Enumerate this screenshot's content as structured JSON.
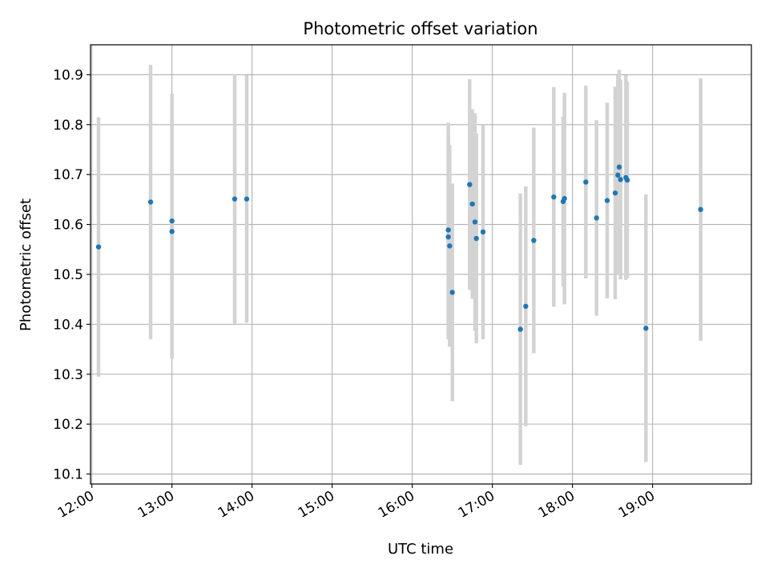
{
  "chart_data": {
    "type": "scatter",
    "title": "Photometric offset variation",
    "xlabel": "UTC time",
    "ylabel": "Photometric offset",
    "x_ticks": [
      "12:00",
      "13:00",
      "14:00",
      "15:00",
      "16:00",
      "17:00",
      "18:00",
      "19:00"
    ],
    "y_ticks": [
      "10.1",
      "10.2",
      "10.3",
      "10.4",
      "10.5",
      "10.6",
      "10.7",
      "10.8",
      "10.9"
    ],
    "xlim": [
      "11:59",
      "20:14"
    ],
    "ylim": [
      10.08,
      10.96
    ],
    "grid": true,
    "point_color": "#1f77b4",
    "errorbar_color": "#d3d3d3",
    "series": [
      {
        "points": [
          {
            "x": "12:05",
            "y": 10.555,
            "err": 0.26
          },
          {
            "x": "12:44",
            "y": 10.645,
            "err": 0.275
          },
          {
            "x": "13:00",
            "y": 10.607,
            "err": 0.255
          },
          {
            "x": "13:00",
            "y": 10.586,
            "err": 0.255
          },
          {
            "x": "13:47",
            "y": 10.651,
            "err": 0.25
          },
          {
            "x": "13:56",
            "y": 10.651,
            "err": 0.248
          },
          {
            "x": "16:27",
            "y": 10.575,
            "err": 0.205
          },
          {
            "x": "16:27",
            "y": 10.589,
            "err": 0.215
          },
          {
            "x": "16:28",
            "y": 10.557,
            "err": 0.202
          },
          {
            "x": "16:30",
            "y": 10.464,
            "err": 0.218
          },
          {
            "x": "16:43",
            "y": 10.68,
            "err": 0.211
          },
          {
            "x": "16:45",
            "y": 10.641,
            "err": 0.19
          },
          {
            "x": "16:47",
            "y": 10.605,
            "err": 0.218
          },
          {
            "x": "16:48",
            "y": 10.572,
            "err": 0.21
          },
          {
            "x": "16:53",
            "y": 10.585,
            "err": 0.215
          },
          {
            "x": "17:21",
            "y": 10.39,
            "err": 0.272
          },
          {
            "x": "17:25",
            "y": 10.436,
            "err": 0.24
          },
          {
            "x": "17:31",
            "y": 10.568,
            "err": 0.226
          },
          {
            "x": "17:46",
            "y": 10.655,
            "err": 0.22
          },
          {
            "x": "17:53",
            "y": 10.646,
            "err": 0.17
          },
          {
            "x": "17:54",
            "y": 10.652,
            "err": 0.212
          },
          {
            "x": "18:10",
            "y": 10.685,
            "err": 0.193
          },
          {
            "x": "18:18",
            "y": 10.613,
            "err": 0.196
          },
          {
            "x": "18:26",
            "y": 10.648,
            "err": 0.196
          },
          {
            "x": "18:32",
            "y": 10.663,
            "err": 0.213
          },
          {
            "x": "18:34",
            "y": 10.699,
            "err": 0.2
          },
          {
            "x": "18:35",
            "y": 10.715,
            "err": 0.195
          },
          {
            "x": "18:36",
            "y": 10.69,
            "err": 0.2
          },
          {
            "x": "18:40",
            "y": 10.694,
            "err": 0.205
          },
          {
            "x": "18:41",
            "y": 10.689,
            "err": 0.197
          },
          {
            "x": "18:55",
            "y": 10.392,
            "err": 0.268
          },
          {
            "x": "19:36",
            "y": 10.63,
            "err": 0.263
          }
        ]
      }
    ]
  }
}
